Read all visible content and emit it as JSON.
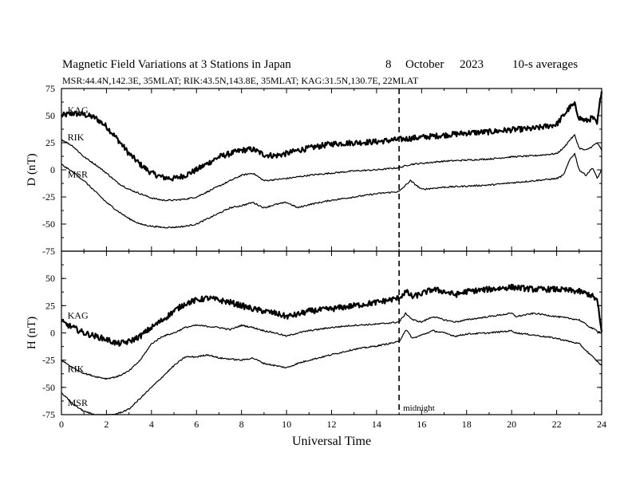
{
  "header": {
    "title": "Magnetic Field Variations at 3 Stations in Japan",
    "day": "8",
    "month": "October",
    "year": "2023",
    "averaging": "10-s averages",
    "stations_line": "MSR:44.4N,142.3E, 35MLAT;  RIK:43.5N,143.8E, 35MLAT;  KAG:31.5N,130.7E, 22MLAT"
  },
  "chart_data": [
    {
      "type": "line",
      "panel": "top",
      "ylabel": "D (nT)",
      "ylim": [
        -75,
        75
      ],
      "yticks": [
        -75,
        -50,
        -25,
        0,
        25,
        50,
        75
      ],
      "xlim": [
        0,
        24
      ],
      "xticks": [
        0,
        2,
        4,
        6,
        8,
        10,
        12,
        14,
        16,
        18,
        20,
        22,
        24
      ],
      "xticks_minor": [
        1,
        3,
        5,
        7,
        9,
        11,
        13,
        15,
        17,
        19,
        21,
        23
      ],
      "grid": false,
      "series": [
        {
          "name": "KAG",
          "label_position": [
            0.2,
            55
          ],
          "x": [
            0,
            0.5,
            1,
            1.5,
            2,
            2.5,
            3,
            3.5,
            4,
            4.5,
            5,
            5.5,
            6,
            6.5,
            7,
            7.5,
            8,
            8.5,
            9,
            9.5,
            10,
            10.5,
            11,
            11.5,
            12,
            13,
            14,
            15,
            16,
            17,
            18,
            19,
            20,
            21,
            22,
            22.3,
            22.6,
            22.8,
            23,
            23.3,
            23.6,
            23.8,
            24
          ],
          "y": [
            50,
            52,
            51,
            48,
            40,
            28,
            15,
            5,
            -3,
            -7,
            -8,
            -5,
            0,
            6,
            12,
            15,
            18,
            19,
            14,
            13,
            15,
            18,
            20,
            22,
            24,
            25,
            26,
            28,
            30,
            32,
            34,
            35,
            37,
            38,
            42,
            50,
            58,
            60,
            48,
            45,
            48,
            42,
            75
          ]
        },
        {
          "name": "RIK",
          "label_position": [
            0.2,
            30
          ],
          "x": [
            0,
            0.5,
            1,
            1.5,
            2,
            2.5,
            3,
            3.5,
            4,
            4.5,
            5,
            5.5,
            6,
            6.5,
            7,
            7.5,
            8,
            8.5,
            9,
            9.5,
            10,
            11,
            12,
            13,
            14,
            15,
            15.5,
            16,
            17,
            18,
            19,
            20,
            21,
            22,
            22.3,
            22.6,
            22.8,
            23,
            23.3,
            23.6,
            23.8,
            24
          ],
          "y": [
            28,
            22,
            12,
            5,
            -3,
            -12,
            -18,
            -22,
            -26,
            -28,
            -28,
            -27,
            -25,
            -20,
            -15,
            -10,
            -5,
            -3,
            -10,
            -9,
            -8,
            -5,
            -3,
            -1,
            0,
            2,
            5,
            6,
            8,
            9,
            10,
            12,
            13,
            15,
            20,
            28,
            32,
            20,
            18,
            22,
            25,
            18
          ]
        },
        {
          "name": "MSR",
          "label_position": [
            0.2,
            -4
          ],
          "x": [
            0,
            0.5,
            1,
            1.5,
            2,
            2.5,
            3,
            3.5,
            4,
            4.5,
            5,
            5.5,
            6,
            6.5,
            7,
            7.5,
            8,
            8.5,
            9,
            9.5,
            10,
            10.5,
            11,
            12,
            13,
            14,
            15,
            15.5,
            16,
            17,
            18,
            19,
            20,
            21,
            22,
            22.3,
            22.6,
            22.8,
            23,
            23.3,
            23.6,
            23.8,
            24
          ],
          "y": [
            5,
            -2,
            -10,
            -20,
            -30,
            -38,
            -45,
            -50,
            -52,
            -53,
            -53,
            -52,
            -50,
            -45,
            -40,
            -35,
            -33,
            -30,
            -35,
            -32,
            -30,
            -35,
            -32,
            -28,
            -25,
            -22,
            -20,
            -10,
            -18,
            -16,
            -15,
            -14,
            -12,
            -10,
            -8,
            -5,
            10,
            15,
            0,
            -5,
            2,
            -8,
            0
          ]
        }
      ]
    },
    {
      "type": "line",
      "panel": "bottom",
      "ylabel": "H (nT)",
      "xlabel": "Universal Time",
      "ylim": [
        -75,
        75
      ],
      "yticks": [
        -75,
        -50,
        -25,
        0,
        25,
        50
      ],
      "xlim": [
        0,
        24
      ],
      "xticks": [
        0,
        2,
        4,
        6,
        8,
        10,
        12,
        14,
        16,
        18,
        20,
        22,
        24
      ],
      "xticks_minor": [
        1,
        3,
        5,
        7,
        9,
        11,
        13,
        15,
        17,
        19,
        21,
        23
      ],
      "grid": false,
      "series": [
        {
          "name": "KAG",
          "label_position": [
            0.2,
            16
          ],
          "x": [
            0,
            0.5,
            1,
            1.5,
            2,
            2.5,
            3,
            3.5,
            4,
            4.5,
            5,
            5.5,
            6,
            6.5,
            7,
            7.5,
            8,
            8.5,
            9,
            9.5,
            10,
            10.5,
            11,
            12,
            13,
            14,
            15,
            15.3,
            15.6,
            16,
            16.5,
            17,
            17.5,
            18,
            19,
            20,
            21,
            22,
            23,
            23.5,
            23.8,
            24
          ],
          "y": [
            10,
            5,
            0,
            -3,
            -6,
            -10,
            -8,
            -3,
            5,
            12,
            20,
            27,
            30,
            32,
            30,
            28,
            25,
            22,
            20,
            18,
            15,
            17,
            20,
            22,
            25,
            28,
            32,
            38,
            33,
            36,
            40,
            38,
            35,
            38,
            40,
            42,
            40,
            40,
            38,
            35,
            30,
            0
          ]
        },
        {
          "name": "RIK",
          "label_position": [
            0.2,
            -33
          ],
          "x": [
            0,
            0.5,
            1,
            1.5,
            2,
            2.5,
            3,
            3.5,
            4,
            4.5,
            5,
            5.5,
            6,
            6.5,
            7,
            7.5,
            8,
            8.5,
            9,
            9.5,
            10,
            10.5,
            11,
            12,
            13,
            14,
            15,
            15.3,
            15.6,
            16,
            16.5,
            17,
            17.5,
            18,
            19,
            20,
            20.2,
            21,
            22,
            23,
            23.5,
            24
          ],
          "y": [
            -25,
            -32,
            -37,
            -40,
            -42,
            -40,
            -35,
            -25,
            -10,
            -3,
            0,
            5,
            7,
            6,
            5,
            3,
            7,
            5,
            2,
            0,
            -3,
            0,
            2,
            5,
            7,
            8,
            10,
            18,
            12,
            10,
            15,
            12,
            10,
            12,
            15,
            18,
            15,
            18,
            15,
            12,
            5,
            0
          ]
        },
        {
          "name": "MSR",
          "label_position": [
            0.2,
            -64
          ],
          "x": [
            0,
            0.5,
            1,
            1.5,
            2,
            2.5,
            3,
            3.5,
            4,
            4.5,
            5,
            5.5,
            6,
            6.5,
            7,
            7.5,
            8,
            8.5,
            9,
            9.5,
            10,
            10.5,
            11,
            12,
            13,
            14,
            15,
            15.3,
            15.6,
            16,
            16.5,
            17,
            17.5,
            18,
            19,
            20,
            20.2,
            21,
            22,
            23,
            23.5,
            24
          ],
          "y": [
            -55,
            -65,
            -72,
            -75,
            -76,
            -74,
            -70,
            -60,
            -50,
            -40,
            -30,
            -22,
            -22,
            -20,
            -23,
            -24,
            -25,
            -23,
            -28,
            -30,
            -32,
            -28,
            -25,
            -20,
            -15,
            -12,
            -8,
            3,
            -5,
            -2,
            2,
            0,
            -3,
            -1,
            0,
            2,
            0,
            -2,
            -5,
            -10,
            -20,
            -30
          ]
        }
      ]
    }
  ],
  "annotations": {
    "midnight_label": "midnight",
    "midnight_x": 15
  }
}
